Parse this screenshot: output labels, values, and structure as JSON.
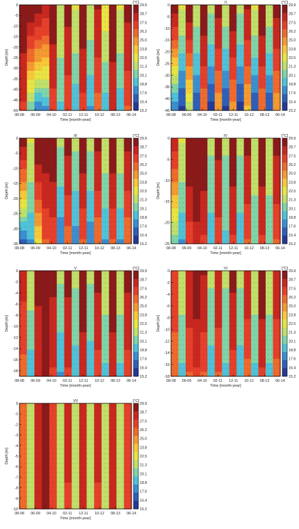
{
  "figure": {
    "shared_time_ticks": [
      "08-08",
      "06-09",
      "04-10",
      "02-11",
      "12-11",
      "10-12",
      "08-13",
      "06-14"
    ],
    "shared_xlabel": "Time [month-year]",
    "shared_ylabel": "Depth [m]",
    "colorbar_unit": "[°C]",
    "colorbar_ticks": [
      "29.9",
      "28.7",
      "27.5",
      "26.2",
      "25.0",
      "23.8",
      "22.5",
      "21.3",
      "20.1",
      "18.8",
      "17.6",
      "16.4",
      "15.2"
    ],
    "colormap": [
      "#8b1a1a",
      "#c8281f",
      "#e5402a",
      "#ef6a2c",
      "#f49a31",
      "#f7c83a",
      "#e8e443",
      "#bfe06a",
      "#7fd4a8",
      "#4fc2d8",
      "#3b8fd0",
      "#2f5fb8",
      "#253a96"
    ]
  },
  "chart_data": [
    {
      "type": "heatmap",
      "title": "",
      "xlabel": "Time [month-year]",
      "ylabel": "Depth [m]",
      "xticks": [
        "08-08",
        "06-09",
        "04-10",
        "02-11",
        "12-11",
        "10-12",
        "08-13",
        "06-14"
      ],
      "yticks": [
        "0",
        "-5",
        "-10",
        "-15",
        "-20",
        "-25",
        "-30",
        "-35",
        "-40",
        "-45",
        "-50"
      ],
      "ylim": [
        -50,
        0
      ],
      "zunit": "[°C]",
      "zrange": [
        15.2,
        29.9
      ],
      "surface_temp_by_x": [
        29.5,
        29.5,
        29.2,
        28.2,
        29.4,
        21.8,
        29.0,
        22.0,
        29.5,
        21.5,
        28.8,
        22.5,
        29.6,
        22.0,
        29.0
      ],
      "bottom_temp_by_x": [
        27.5,
        20.0,
        17.8,
        18.5,
        27.0,
        19.5,
        26.8,
        18.8,
        27.2,
        18.5,
        26.0,
        19.0,
        27.8,
        19.0,
        26.5
      ]
    },
    {
      "type": "heatmap",
      "title": "II",
      "xlabel": "Time [month-year]",
      "ylabel": "Depth [m]",
      "xticks": [
        "08-08",
        "06-09",
        "04-10",
        "02-11",
        "12-11",
        "10-12",
        "08-13",
        "06-14"
      ],
      "yticks": [
        "0",
        "-5",
        "-10",
        "-15",
        "-20",
        "-25",
        "-30",
        "-35",
        "-40",
        "-45"
      ],
      "ylim": [
        -45,
        0
      ],
      "zunit": "[°C]",
      "zrange": [
        15.2,
        29.9
      ],
      "surface_temp_by_x": [
        29.0,
        22.0,
        29.5,
        21.5,
        29.6,
        21.0,
        29.0,
        21.5,
        29.4,
        21.0,
        28.8,
        22.0,
        29.6,
        21.5,
        29.0
      ],
      "bottom_temp_by_x": [
        17.5,
        16.0,
        21.5,
        16.5,
        25.5,
        16.0,
        24.5,
        16.2,
        25.0,
        16.0,
        24.0,
        16.5,
        25.5,
        16.5,
        24.5
      ]
    },
    {
      "type": "heatmap",
      "title": "III",
      "xlabel": "Time [month-year]",
      "ylabel": "Depth [m]",
      "xticks": [
        "08-08",
        "06-09",
        "04-10",
        "02-11",
        "12-11",
        "10-12",
        "08-13",
        "06-14"
      ],
      "yticks": [
        "0",
        "-5",
        "-10",
        "-15",
        "-20",
        "-25",
        "-30",
        "-35"
      ],
      "ylim": [
        -35,
        0
      ],
      "zunit": "[°C]",
      "zrange": [
        15.2,
        29.9
      ],
      "surface_temp_by_x": [
        29.0,
        22.0,
        29.8,
        29.5,
        29.6,
        21.0,
        29.0,
        21.0,
        29.5,
        21.0,
        29.0,
        21.5,
        29.5,
        21.5,
        29.0
      ],
      "bottom_temp_by_x": [
        17.0,
        18.5,
        23.0,
        26.5,
        26.8,
        17.5,
        26.0,
        18.0,
        26.5,
        17.8,
        25.5,
        18.5,
        26.5,
        18.5,
        25.5
      ]
    },
    {
      "type": "heatmap",
      "title": "IV",
      "xlabel": "Time [month-year]",
      "ylabel": "Depth [m]",
      "xticks": [
        "08-08",
        "06-09",
        "04-10",
        "02-11",
        "12-11",
        "10-12",
        "08-13",
        "06-14"
      ],
      "yticks": [
        "0",
        "-5",
        "-10",
        "-15",
        "-20",
        "-25"
      ],
      "ylim": [
        -25,
        0
      ],
      "zunit": "[°C]",
      "zrange": [
        15.2,
        29.9
      ],
      "surface_temp_by_x": [
        28.0,
        22.0,
        29.8,
        29.7,
        29.6,
        21.0,
        29.0,
        21.0,
        29.5,
        21.0,
        29.0,
        21.5,
        29.5,
        21.5,
        29.0
      ],
      "bottom_temp_by_x": [
        20.0,
        18.5,
        27.0,
        28.5,
        27.5,
        19.0,
        27.0,
        19.5,
        27.5,
        19.0,
        26.5,
        20.0,
        27.5,
        20.0,
        26.5
      ]
    },
    {
      "type": "heatmap",
      "title": "V",
      "xlabel": "Time [month-year]",
      "ylabel": "Depth [m]",
      "xticks": [
        "08-08",
        "06-09",
        "04-10",
        "02-11",
        "12-11",
        "10-12",
        "08-13",
        "06-14"
      ],
      "yticks": [
        "0",
        "-2",
        "-4",
        "-6",
        "-8",
        "-10",
        "-12",
        "-14",
        "-16",
        "-18"
      ],
      "ylim": [
        -19,
        0
      ],
      "zunit": "[°C]",
      "zrange": [
        15.2,
        29.9
      ],
      "surface_temp_by_x": [
        28.0,
        21.5,
        29.0,
        29.5,
        29.0,
        21.0,
        29.0,
        21.0,
        29.5,
        21.0,
        29.0,
        21.5,
        29.5,
        21.5,
        29.0
      ],
      "bottom_temp_by_x": [
        26.0,
        19.0,
        28.0,
        28.8,
        27.5,
        18.5,
        27.5,
        19.0,
        28.0,
        18.8,
        27.0,
        19.5,
        28.0,
        19.5,
        27.0
      ]
    },
    {
      "type": "heatmap",
      "title": "VI",
      "xlabel": "Time [month-year]",
      "ylabel": "Depth [m]",
      "xticks": [
        "08-08",
        "06-09",
        "04-10",
        "02-11",
        "12-11",
        "10-12",
        "08-13",
        "06-14"
      ],
      "yticks": [
        "0",
        "-2",
        "-4",
        "-6",
        "-8",
        "-10",
        "-12",
        "-14",
        "-16",
        "-18"
      ],
      "ylim": [
        -18,
        0
      ],
      "zunit": "[°C]",
      "zrange": [
        15.2,
        29.9
      ],
      "surface_temp_by_x": [
        27.5,
        21.5,
        28.5,
        29.5,
        28.8,
        21.0,
        28.5,
        21.0,
        29.0,
        21.0,
        28.5,
        21.5,
        29.5,
        21.5,
        28.5
      ],
      "bottom_temp_by_x": [
        25.5,
        19.5,
        26.5,
        27.5,
        26.5,
        19.0,
        26.5,
        19.5,
        27.0,
        19.0,
        26.0,
        19.5,
        27.5,
        19.5,
        26.0
      ]
    },
    {
      "type": "heatmap",
      "title": "VII",
      "xlabel": "Time [month-year]",
      "ylabel": "Depth [m]",
      "xticks": [
        "08-08",
        "06-09",
        "04-10",
        "02-11",
        "12-11",
        "10-12",
        "08-13",
        "06-14"
      ],
      "yticks": [
        "0",
        "-1",
        "-2",
        "-3",
        "-4",
        "-5",
        "-6",
        "-7",
        "-8",
        "-9",
        "-10"
      ],
      "ylim": [
        -10,
        0
      ],
      "zunit": "[°C]",
      "zrange": [
        15.2,
        29.9
      ],
      "surface_temp_by_x": [
        26.0,
        21.0,
        28.5,
        29.5,
        27.5,
        21.0,
        28.0,
        21.0,
        28.5,
        21.0,
        28.0,
        21.0,
        28.5,
        21.0,
        27.5
      ],
      "bottom_temp_by_x": [
        25.5,
        21.0,
        28.0,
        29.0,
        27.0,
        21.0,
        27.5,
        21.0,
        28.0,
        21.0,
        27.5,
        21.0,
        28.0,
        21.0,
        27.0
      ]
    }
  ]
}
